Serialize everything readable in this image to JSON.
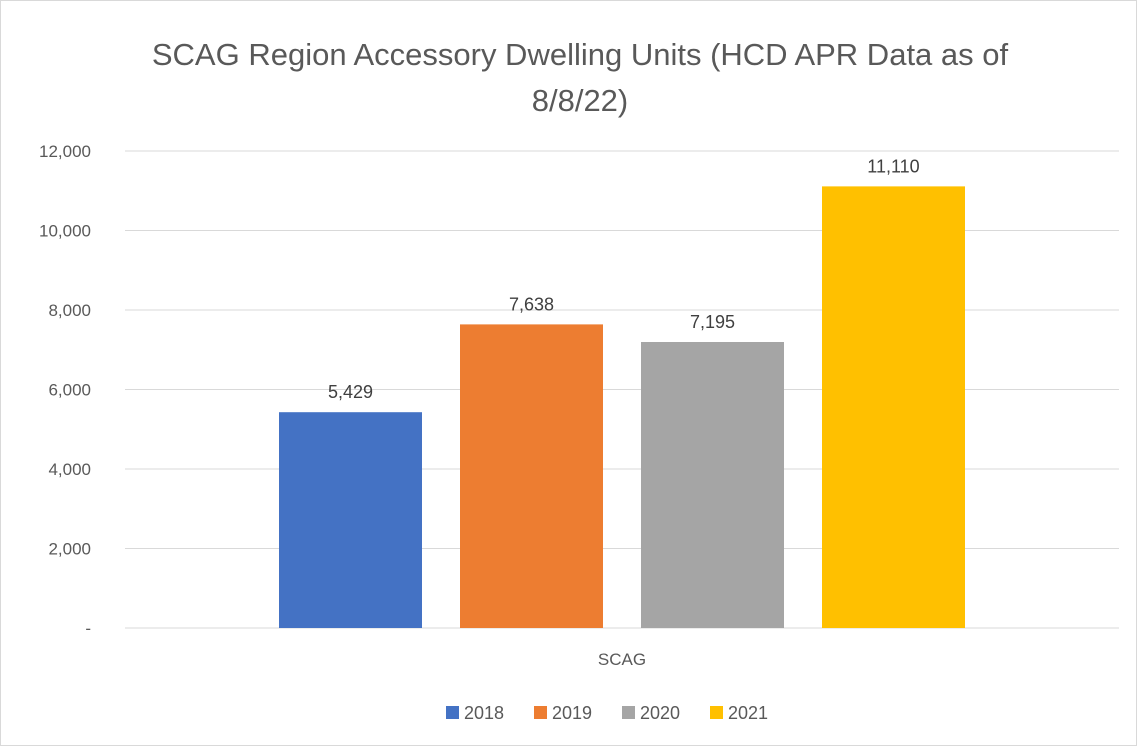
{
  "chart_data": {
    "type": "bar",
    "title_lines": [
      "SCAG Region Accessory Dwelling Units (HCD APR Data as of",
      "8/8/22)"
    ],
    "categories": [
      "SCAG"
    ],
    "series": [
      {
        "name": "2018",
        "values": [
          5429
        ],
        "label": "5,429",
        "color": "#4472C4"
      },
      {
        "name": "2019",
        "values": [
          7638
        ],
        "label": "7,638",
        "color": "#ED7D31"
      },
      {
        "name": "2020",
        "values": [
          7195
        ],
        "label": "7,195",
        "color": "#A5A5A5"
      },
      {
        "name": "2021",
        "values": [
          11110
        ],
        "label": "11,110",
        "color": "#FFC000"
      }
    ],
    "ylim": [
      0,
      12000
    ],
    "yticks": [
      {
        "value": 0,
        "label": "-"
      },
      {
        "value": 2000,
        "label": "2,000"
      },
      {
        "value": 4000,
        "label": "4,000"
      },
      {
        "value": 6000,
        "label": "6,000"
      },
      {
        "value": 8000,
        "label": "8,000"
      },
      {
        "value": 10000,
        "label": "10,000"
      },
      {
        "value": 12000,
        "label": "12,000"
      }
    ],
    "grid": true,
    "legend_position": "bottom",
    "gridline_color": "#d9d9d9"
  }
}
